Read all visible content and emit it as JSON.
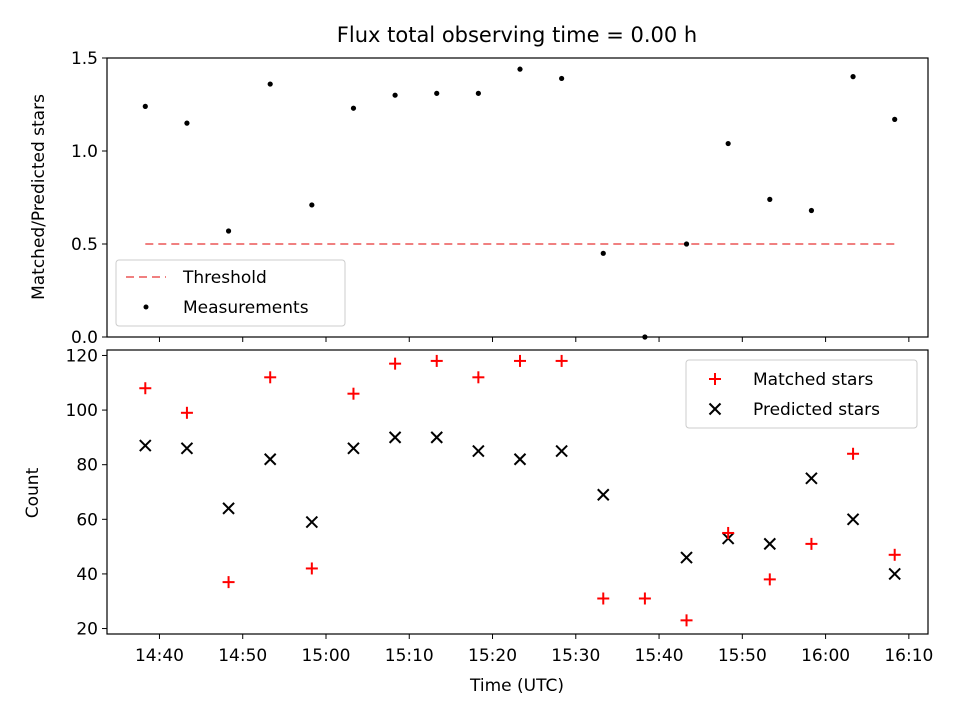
{
  "chart_data": [
    {
      "type": "scatter",
      "title": "Flux total observing time = 0.00 h",
      "xlabel": "",
      "ylabel": "Matched/Predicted stars",
      "ylim": [
        0,
        1.5
      ],
      "yticks": [
        "0.0",
        "0.5",
        "1.0",
        "1.5"
      ],
      "yticks_values": [
        0,
        0.5,
        1.0,
        1.5
      ],
      "x": [
        38.3,
        43.3,
        48.3,
        53.3,
        58.3,
        63.3,
        68.3,
        73.3,
        78.3,
        83.3,
        88.3,
        93.3,
        98.3,
        103.3,
        108.3,
        113.3,
        118.3,
        123.3,
        128.3
      ],
      "threshold": {
        "name": "Threshold",
        "value": 0.5,
        "color": "#f08080"
      },
      "series": [
        {
          "name": "Measurements",
          "color": "#000000",
          "values": [
            1.24,
            1.15,
            0.57,
            1.36,
            0.71,
            1.23,
            1.3,
            1.31,
            1.31,
            1.44,
            1.39,
            0.45,
            0.0,
            0.5,
            1.04,
            0.74,
            0.68,
            1.4,
            1.17
          ]
        }
      ],
      "legend": {
        "placement": "lower-left",
        "entries": [
          "Threshold",
          "Measurements"
        ]
      }
    },
    {
      "type": "scatter",
      "title": "",
      "xlabel": "Time (UTC)",
      "ylabel": "Count",
      "ylim": [
        18,
        122
      ],
      "yticks": [
        "20",
        "40",
        "60",
        "80",
        "100",
        "120"
      ],
      "yticks_values": [
        20,
        40,
        60,
        80,
        100,
        120
      ],
      "xlim": [
        33.7,
        132.3
      ],
      "xticks": [
        "14:40",
        "14:50",
        "15:00",
        "15:10",
        "15:20",
        "15:30",
        "15:40",
        "15:50",
        "16:00",
        "16:10"
      ],
      "xticks_values": [
        40,
        50,
        60,
        70,
        80,
        90,
        100,
        110,
        120,
        130
      ],
      "x": [
        38.3,
        43.3,
        48.3,
        53.3,
        58.3,
        63.3,
        68.3,
        73.3,
        78.3,
        83.3,
        88.3,
        93.3,
        98.3,
        103.3,
        108.3,
        113.3,
        118.3,
        123.3,
        128.3
      ],
      "series": [
        {
          "name": "Matched stars",
          "color": "#ff0000",
          "marker": "plus",
          "values": [
            108,
            99,
            37,
            112,
            42,
            106,
            117,
            118,
            112,
            118,
            118,
            31,
            31,
            23,
            55,
            38,
            51,
            84,
            47
          ]
        },
        {
          "name": "Predicted stars",
          "color": "#000000",
          "marker": "x",
          "values": [
            87,
            86,
            64,
            82,
            59,
            86,
            90,
            90,
            85,
            82,
            85,
            69,
            null,
            46,
            53,
            51,
            75,
            60,
            40
          ]
        }
      ],
      "legend": {
        "placement": "top-right",
        "entries": [
          "Matched stars",
          "Predicted stars"
        ]
      }
    }
  ]
}
